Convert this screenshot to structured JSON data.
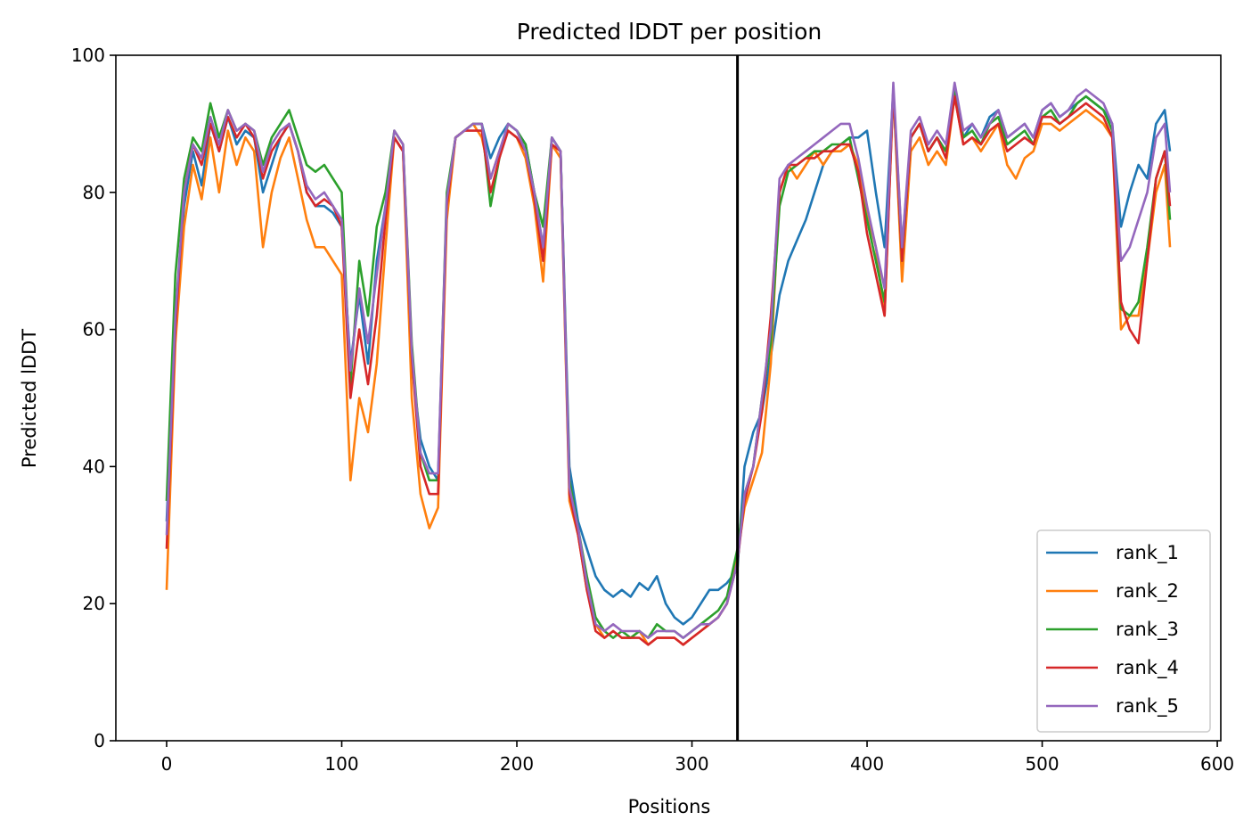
{
  "chart_data": {
    "type": "line",
    "title": "Predicted lDDT per position",
    "xlabel": "Positions",
    "ylabel": "Predicted lDDT",
    "xlim": [
      -29,
      602
    ],
    "ylim": [
      0,
      100
    ],
    "xticks": [
      0,
      100,
      200,
      300,
      400,
      500,
      600
    ],
    "yticks": [
      0,
      20,
      40,
      60,
      80,
      100
    ],
    "grid": false,
    "legend_position": "lower-right",
    "vertical_line": {
      "x": 326,
      "color": "#000000"
    },
    "series": [
      {
        "name": "rank_1",
        "color": "#1f77b4",
        "x": [
          0,
          5,
          10,
          15,
          20,
          25,
          30,
          35,
          40,
          45,
          50,
          55,
          60,
          65,
          70,
          75,
          80,
          85,
          90,
          95,
          100,
          105,
          110,
          115,
          120,
          125,
          130,
          135,
          140,
          145,
          150,
          155,
          160,
          165,
          170,
          175,
          180,
          185,
          190,
          195,
          200,
          205,
          210,
          215,
          220,
          225,
          230,
          235,
          240,
          245,
          250,
          255,
          260,
          265,
          270,
          275,
          280,
          285,
          290,
          295,
          300,
          305,
          310,
          315,
          320,
          326,
          330,
          335,
          340,
          345,
          350,
          355,
          360,
          365,
          370,
          375,
          380,
          385,
          390,
          395,
          400,
          405,
          410,
          415,
          420,
          425,
          430,
          435,
          440,
          445,
          450,
          455,
          460,
          465,
          470,
          475,
          480,
          485,
          490,
          495,
          500,
          505,
          510,
          515,
          520,
          525,
          530,
          535,
          540,
          545,
          550,
          555,
          560,
          565,
          570,
          573
        ],
        "y": [
          32,
          62,
          78,
          86,
          81,
          90,
          86,
          91,
          87,
          89,
          88,
          80,
          84,
          88,
          90,
          86,
          80,
          78,
          78,
          77,
          75,
          55,
          65,
          55,
          70,
          78,
          88,
          86,
          55,
          44,
          40,
          38,
          78,
          88,
          89,
          90,
          90,
          85,
          88,
          90,
          89,
          87,
          80,
          72,
          88,
          86,
          40,
          32,
          28,
          24,
          22,
          21,
          22,
          21,
          23,
          22,
          24,
          20,
          18,
          17,
          18,
          20,
          22,
          22,
          23,
          25,
          40,
          45,
          48,
          56,
          65,
          70,
          73,
          76,
          80,
          84,
          86,
          87,
          88,
          88,
          89,
          80,
          72,
          95,
          72,
          88,
          90,
          86,
          88,
          86,
          95,
          88,
          90,
          88,
          91,
          92,
          88,
          89,
          90,
          88,
          92,
          93,
          91,
          92,
          93,
          94,
          93,
          92,
          90,
          75,
          80,
          84,
          82,
          90,
          92,
          86
        ]
      },
      {
        "name": "rank_2",
        "color": "#ff7f0e",
        "x": [
          0,
          5,
          10,
          15,
          20,
          25,
          30,
          35,
          40,
          45,
          50,
          55,
          60,
          65,
          70,
          75,
          80,
          85,
          90,
          95,
          100,
          105,
          110,
          115,
          120,
          125,
          130,
          135,
          140,
          145,
          150,
          155,
          160,
          165,
          170,
          175,
          180,
          185,
          190,
          195,
          200,
          205,
          210,
          215,
          220,
          225,
          230,
          235,
          240,
          245,
          250,
          255,
          260,
          265,
          270,
          275,
          280,
          285,
          290,
          295,
          300,
          305,
          310,
          315,
          320,
          326,
          330,
          335,
          340,
          345,
          350,
          355,
          360,
          365,
          370,
          375,
          380,
          385,
          390,
          395,
          400,
          405,
          410,
          415,
          420,
          425,
          430,
          435,
          440,
          445,
          450,
          455,
          460,
          465,
          470,
          475,
          480,
          485,
          490,
          495,
          500,
          505,
          510,
          515,
          520,
          525,
          530,
          535,
          540,
          545,
          550,
          555,
          560,
          565,
          570,
          573
        ],
        "y": [
          22,
          58,
          75,
          84,
          79,
          88,
          80,
          89,
          84,
          88,
          86,
          72,
          80,
          85,
          88,
          82,
          76,
          72,
          72,
          70,
          68,
          38,
          50,
          45,
          55,
          72,
          88,
          86,
          50,
          36,
          31,
          34,
          76,
          88,
          89,
          90,
          88,
          82,
          86,
          89,
          88,
          85,
          78,
          67,
          87,
          85,
          35,
          30,
          22,
          17,
          15,
          16,
          15,
          15,
          16,
          14,
          15,
          15,
          15,
          14,
          15,
          16,
          17,
          18,
          20,
          27,
          34,
          38,
          42,
          55,
          80,
          84,
          82,
          84,
          86,
          84,
          86,
          86,
          87,
          84,
          77,
          72,
          62,
          95,
          67,
          86,
          88,
          84,
          86,
          84,
          94,
          87,
          88,
          86,
          88,
          90,
          84,
          82,
          85,
          86,
          90,
          90,
          89,
          90,
          91,
          92,
          91,
          90,
          88,
          60,
          62,
          62,
          70,
          80,
          84,
          72
        ]
      },
      {
        "name": "rank_3",
        "color": "#2ca02c",
        "x": [
          0,
          5,
          10,
          15,
          20,
          25,
          30,
          35,
          40,
          45,
          50,
          55,
          60,
          65,
          70,
          75,
          80,
          85,
          90,
          95,
          100,
          105,
          110,
          115,
          120,
          125,
          130,
          135,
          140,
          145,
          150,
          155,
          160,
          165,
          170,
          175,
          180,
          185,
          190,
          195,
          200,
          205,
          210,
          215,
          220,
          225,
          230,
          235,
          240,
          245,
          250,
          255,
          260,
          265,
          270,
          275,
          280,
          285,
          290,
          295,
          300,
          305,
          310,
          315,
          320,
          326,
          330,
          335,
          340,
          345,
          350,
          355,
          360,
          365,
          370,
          375,
          380,
          385,
          390,
          395,
          400,
          405,
          410,
          415,
          420,
          425,
          430,
          435,
          440,
          445,
          450,
          455,
          460,
          465,
          470,
          475,
          480,
          485,
          490,
          495,
          500,
          505,
          510,
          515,
          520,
          525,
          530,
          535,
          540,
          545,
          550,
          555,
          560,
          565,
          570,
          573
        ],
        "y": [
          35,
          68,
          82,
          88,
          86,
          93,
          88,
          92,
          89,
          90,
          89,
          84,
          88,
          90,
          92,
          88,
          84,
          83,
          84,
          82,
          80,
          52,
          70,
          62,
          75,
          80,
          89,
          87,
          58,
          42,
          38,
          38,
          80,
          88,
          89,
          90,
          90,
          78,
          85,
          90,
          89,
          87,
          80,
          75,
          88,
          86,
          38,
          31,
          24,
          18,
          16,
          15,
          16,
          15,
          16,
          15,
          17,
          16,
          16,
          15,
          16,
          17,
          18,
          19,
          21,
          28,
          36,
          40,
          50,
          58,
          78,
          83,
          84,
          85,
          86,
          86,
          87,
          87,
          88,
          82,
          76,
          70,
          64,
          95,
          70,
          88,
          90,
          86,
          88,
          86,
          95,
          88,
          89,
          87,
          90,
          91,
          87,
          88,
          89,
          87,
          91,
          92,
          90,
          91,
          93,
          94,
          93,
          92,
          89,
          63,
          62,
          64,
          72,
          82,
          86,
          76
        ]
      },
      {
        "name": "rank_4",
        "color": "#d62728",
        "x": [
          0,
          5,
          10,
          15,
          20,
          25,
          30,
          35,
          40,
          45,
          50,
          55,
          60,
          65,
          70,
          75,
          80,
          85,
          90,
          95,
          100,
          105,
          110,
          115,
          120,
          125,
          130,
          135,
          140,
          145,
          150,
          155,
          160,
          165,
          170,
          175,
          180,
          185,
          190,
          195,
          200,
          205,
          210,
          215,
          220,
          225,
          230,
          235,
          240,
          245,
          250,
          255,
          260,
          265,
          270,
          275,
          280,
          285,
          290,
          295,
          300,
          305,
          310,
          315,
          320,
          326,
          330,
          335,
          340,
          345,
          350,
          355,
          360,
          365,
          370,
          375,
          380,
          385,
          390,
          395,
          400,
          405,
          410,
          415,
          420,
          425,
          430,
          435,
          440,
          445,
          450,
          455,
          460,
          465,
          470,
          475,
          480,
          485,
          490,
          495,
          500,
          505,
          510,
          515,
          520,
          525,
          530,
          535,
          540,
          545,
          550,
          555,
          560,
          565,
          570,
          573
        ],
        "y": [
          28,
          60,
          80,
          87,
          84,
          90,
          86,
          91,
          88,
          90,
          88,
          82,
          86,
          88,
          90,
          86,
          80,
          78,
          79,
          78,
          75,
          50,
          60,
          52,
          62,
          76,
          88,
          86,
          56,
          40,
          36,
          36,
          78,
          88,
          89,
          89,
          89,
          80,
          85,
          89,
          88,
          86,
          79,
          70,
          87,
          86,
          36,
          30,
          22,
          16,
          15,
          16,
          15,
          15,
          15,
          14,
          15,
          15,
          15,
          14,
          15,
          16,
          17,
          18,
          20,
          26,
          35,
          40,
          48,
          62,
          80,
          84,
          84,
          85,
          85,
          86,
          86,
          87,
          87,
          83,
          74,
          68,
          62,
          95,
          70,
          88,
          90,
          86,
          88,
          85,
          94,
          87,
          88,
          87,
          89,
          90,
          86,
          87,
          88,
          87,
          91,
          91,
          90,
          91,
          92,
          93,
          92,
          91,
          88,
          64,
          60,
          58,
          70,
          82,
          86,
          78
        ]
      },
      {
        "name": "rank_5",
        "color": "#9467bd",
        "x": [
          0,
          5,
          10,
          15,
          20,
          25,
          30,
          35,
          40,
          45,
          50,
          55,
          60,
          65,
          70,
          75,
          80,
          85,
          90,
          95,
          100,
          105,
          110,
          115,
          120,
          125,
          130,
          135,
          140,
          145,
          150,
          155,
          160,
          165,
          170,
          175,
          180,
          185,
          190,
          195,
          200,
          205,
          210,
          215,
          220,
          225,
          230,
          235,
          240,
          245,
          250,
          255,
          260,
          265,
          270,
          275,
          280,
          285,
          290,
          295,
          300,
          305,
          310,
          315,
          320,
          326,
          330,
          335,
          340,
          345,
          350,
          355,
          360,
          365,
          370,
          375,
          380,
          385,
          390,
          395,
          400,
          405,
          410,
          415,
          420,
          425,
          430,
          435,
          440,
          445,
          450,
          455,
          460,
          465,
          470,
          475,
          480,
          485,
          490,
          495,
          500,
          505,
          510,
          515,
          520,
          525,
          530,
          535,
          540,
          545,
          550,
          555,
          560,
          565,
          570,
          573
        ],
        "y": [
          30,
          62,
          80,
          87,
          85,
          91,
          87,
          92,
          89,
          90,
          89,
          83,
          87,
          89,
          90,
          86,
          81,
          79,
          80,
          78,
          76,
          54,
          66,
          58,
          68,
          78,
          89,
          87,
          57,
          42,
          39,
          39,
          79,
          88,
          89,
          90,
          90,
          82,
          86,
          90,
          89,
          86,
          80,
          72,
          88,
          86,
          37,
          31,
          23,
          17,
          16,
          17,
          16,
          16,
          16,
          15,
          16,
          16,
          16,
          15,
          16,
          17,
          17,
          18,
          20,
          26,
          36,
          40,
          50,
          60,
          82,
          84,
          85,
          86,
          87,
          88,
          89,
          90,
          90,
          85,
          78,
          72,
          66,
          96,
          72,
          89,
          91,
          87,
          89,
          87,
          96,
          89,
          90,
          88,
          90,
          92,
          88,
          89,
          90,
          88,
          92,
          93,
          91,
          92,
          94,
          95,
          94,
          93,
          90,
          70,
          72,
          76,
          80,
          88,
          90,
          80
        ]
      }
    ]
  }
}
